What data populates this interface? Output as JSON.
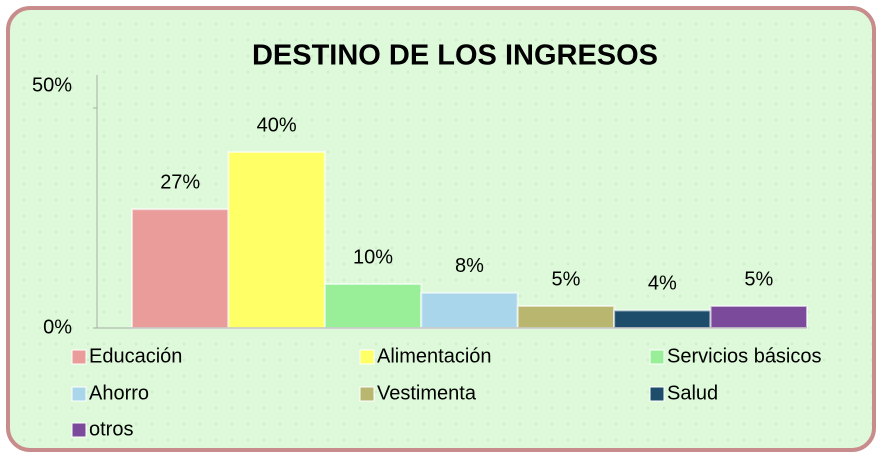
{
  "chart_data": {
    "type": "bar",
    "title": "DESTINO DE LOS INGRESOS",
    "categories": [
      "Educación",
      "Alimentación",
      "Servicios básicos",
      "Ahorro",
      "Vestimenta",
      "Salud",
      "otros"
    ],
    "values": [
      27,
      40,
      10,
      8,
      5,
      4,
      5
    ],
    "value_labels": [
      "27%",
      "40%",
      "10%",
      "8%",
      "5%",
      "4%",
      "5%"
    ],
    "colors": [
      "#e99c9a",
      "#ffff66",
      "#98ef98",
      "#a9d6ea",
      "#b9b76f",
      "#1e4d6c",
      "#7b4a9b"
    ],
    "ylim": [
      0,
      50
    ],
    "yticks": [
      {
        "value": 0,
        "label": "0%"
      },
      {
        "value": 50,
        "label": "50%"
      }
    ],
    "legend": "bottom"
  }
}
